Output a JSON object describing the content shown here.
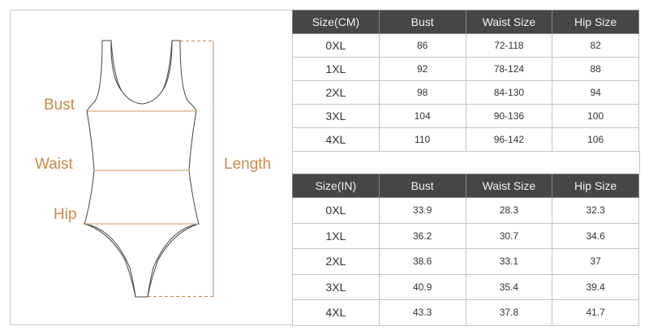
{
  "figure": {
    "labels": {
      "bust": "Bust",
      "waist": "Waist",
      "hip": "Hip",
      "length": "Length"
    },
    "accent_color": "#c98a4a",
    "outline_color": "#444444"
  },
  "tables": [
    {
      "headers": [
        "Size(CM)",
        "Bust",
        "Waist Size",
        "Hip Size"
      ],
      "rows": [
        [
          "0XL",
          "86",
          "72-118",
          "82"
        ],
        [
          "1XL",
          "92",
          "78-124",
          "88"
        ],
        [
          "2XL",
          "98",
          "84-130",
          "94"
        ],
        [
          "3XL",
          "104",
          "90-136",
          "100"
        ],
        [
          "4XL",
          "110",
          "96-142",
          "106"
        ]
      ]
    },
    {
      "headers": [
        "Size(IN)",
        "Bust",
        "Waist Size",
        "Hip Size"
      ],
      "rows": [
        [
          "0XL",
          "33.9",
          "28.3",
          "32.3"
        ],
        [
          "1XL",
          "36.2",
          "30.7",
          "34.6"
        ],
        [
          "2XL",
          "38.6",
          "33.1",
          "37"
        ],
        [
          "3XL",
          "40.9",
          "35.4",
          "39.4"
        ],
        [
          "4XL",
          "43.3",
          "37.8",
          "41.7"
        ]
      ]
    }
  ],
  "header_color": "#4a4543"
}
